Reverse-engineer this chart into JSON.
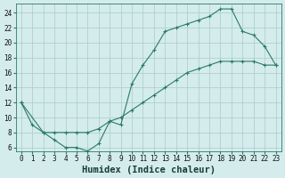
{
  "xlabel": "Humidex (Indice chaleur)",
  "xlim": [
    -0.5,
    23.5
  ],
  "ylim": [
    5.5,
    25.2
  ],
  "xticks": [
    0,
    1,
    2,
    3,
    4,
    5,
    6,
    7,
    8,
    9,
    10,
    11,
    12,
    13,
    14,
    15,
    16,
    17,
    18,
    19,
    20,
    21,
    22,
    23
  ],
  "yticks": [
    6,
    8,
    10,
    12,
    14,
    16,
    18,
    20,
    22,
    24
  ],
  "line1_x": [
    0,
    1,
    2,
    3,
    4,
    5,
    6,
    7,
    8,
    9,
    10,
    11,
    12,
    13,
    14,
    15,
    16,
    17,
    18,
    19,
    20,
    21,
    22,
    23
  ],
  "line1_y": [
    12,
    9,
    8,
    7,
    6,
    6,
    5.5,
    6.5,
    9.5,
    9,
    14.5,
    17,
    19,
    21.5,
    22,
    22.5,
    23,
    23.5,
    24.5,
    24.5,
    21.5,
    21,
    19.5,
    17
  ],
  "line2_x": [
    0,
    2,
    3,
    4,
    5,
    6,
    7,
    8,
    9,
    10,
    11,
    12,
    13,
    14,
    15,
    16,
    17,
    18,
    19,
    20,
    21,
    22,
    23
  ],
  "line2_y": [
    12,
    8,
    8,
    8,
    8,
    8,
    8.5,
    9.5,
    10,
    11,
    12,
    13,
    14,
    15,
    16,
    16.5,
    17,
    17.5,
    17.5,
    17.5,
    17.5,
    17,
    17
  ],
  "line_color": "#2a7a6a",
  "bg_color": "#d4ecec",
  "grid_color": "#aacaca",
  "tick_fontsize": 5.5,
  "label_fontsize": 7.5
}
